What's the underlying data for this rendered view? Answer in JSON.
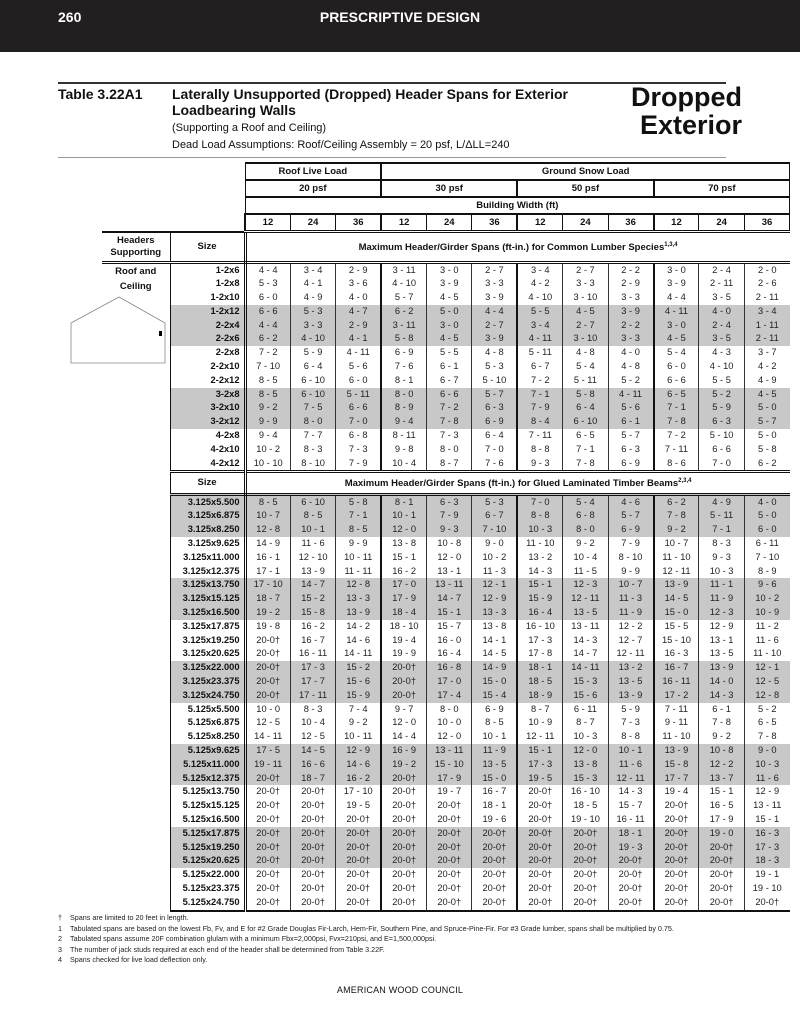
{
  "page": {
    "number": "260",
    "section": "PRESCRIPTIVE DESIGN",
    "footer": "AMERICAN WOOD COUNCIL"
  },
  "table": {
    "number": "Table 3.22A1",
    "title": "Laterally Unsupported (Dropped) Header Spans for Exterior Loadbearing Walls",
    "subtitle": "(Supporting a Roof and Ceiling)",
    "dead_load": "Dead Load Assumptions: Roof/Ceiling Assembly = 20 psf, L/ΔLL=240",
    "tab_label_1": "Dropped",
    "tab_label_2": "Exterior"
  },
  "header": {
    "roof_live_load": "Roof Live Load",
    "ground_snow_load": "Ground Snow Load",
    "loads": [
      "20 psf",
      "30 psf",
      "50 psf",
      "70 psf"
    ],
    "building_width": "Building Width (ft)",
    "widths": [
      "12",
      "24",
      "36",
      "12",
      "24",
      "36",
      "12",
      "24",
      "36",
      "12",
      "24",
      "36"
    ],
    "headers_supporting": "Headers Supporting",
    "size": "Size",
    "lumber_caption": "Maximum Header/Girder Spans (ft-in.) for Common Lumber Species",
    "lumber_notes": "1,3,4",
    "glulam_caption": "Maximum Header/Girder Spans (ft-in.) for Glued Laminated Timber Beams",
    "glulam_notes": "2,3,4",
    "supporting_label": "Roof and Ceiling"
  },
  "lumber_rows": [
    [
      "1-2x6",
      "4 - 4",
      "3 - 4",
      "2 - 9",
      "3 - 11",
      "3 - 0",
      "2 - 7",
      "3 - 4",
      "2 - 7",
      "2 - 2",
      "3 - 0",
      "2 - 4",
      "2 - 0"
    ],
    [
      "1-2x8",
      "5 - 3",
      "4 - 1",
      "3 - 6",
      "4 - 10",
      "3 - 9",
      "3 - 3",
      "4 - 2",
      "3 - 3",
      "2 - 9",
      "3 - 9",
      "2 - 11",
      "2 - 6"
    ],
    [
      "1-2x10",
      "6 - 0",
      "4 - 9",
      "4 - 0",
      "5 - 7",
      "4 - 5",
      "3 - 9",
      "4 - 10",
      "3 - 10",
      "3 - 3",
      "4 - 4",
      "3 - 5",
      "2 - 11"
    ],
    [
      "1-2x12",
      "6 - 6",
      "5 - 3",
      "4 - 7",
      "6 - 2",
      "5 - 0",
      "4 - 4",
      "5 - 5",
      "4 - 5",
      "3 - 9",
      "4 - 11",
      "4 - 0",
      "3 - 4"
    ],
    [
      "2-2x4",
      "4 - 4",
      "3 - 3",
      "2 - 9",
      "3 - 11",
      "3 - 0",
      "2 - 7",
      "3 - 4",
      "2 - 7",
      "2 - 2",
      "3 - 0",
      "2 - 4",
      "1 - 11"
    ],
    [
      "2-2x6",
      "6 - 2",
      "4 - 10",
      "4 - 1",
      "5 - 8",
      "4 - 5",
      "3 - 9",
      "4 - 11",
      "3 - 10",
      "3 - 3",
      "4 - 5",
      "3 - 5",
      "2 - 11"
    ],
    [
      "2-2x8",
      "7 - 2",
      "5 - 9",
      "4 - 11",
      "6 - 9",
      "5 - 5",
      "4 - 8",
      "5 - 11",
      "4 - 8",
      "4 - 0",
      "5 - 4",
      "4 - 3",
      "3 - 7"
    ],
    [
      "2-2x10",
      "7 - 10",
      "6 - 4",
      "5 - 6",
      "7 - 6",
      "6 - 1",
      "5 - 3",
      "6 - 7",
      "5 - 4",
      "4 - 8",
      "6 - 0",
      "4 - 10",
      "4 - 2"
    ],
    [
      "2-2x12",
      "8 - 5",
      "6 - 10",
      "6 - 0",
      "8 - 1",
      "6 - 7",
      "5 - 10",
      "7 - 2",
      "5 - 11",
      "5 - 2",
      "6 - 6",
      "5 - 5",
      "4 - 9"
    ],
    [
      "3-2x8",
      "8 - 5",
      "6 - 10",
      "5 - 11",
      "8 - 0",
      "6 - 6",
      "5 - 7",
      "7 - 1",
      "5 - 8",
      "4 - 11",
      "6 - 5",
      "5 - 2",
      "4 - 5"
    ],
    [
      "3-2x10",
      "9 - 2",
      "7 - 5",
      "6 - 6",
      "8 - 9",
      "7 - 2",
      "6 - 3",
      "7 - 9",
      "6 - 4",
      "5 - 6",
      "7 - 1",
      "5 - 9",
      "5 - 0"
    ],
    [
      "3-2x12",
      "9 - 9",
      "8 - 0",
      "7 - 0",
      "9 - 4",
      "7 - 8",
      "6 - 9",
      "8 - 4",
      "6 - 10",
      "6 - 1",
      "7 - 8",
      "6 - 3",
      "5 - 7"
    ],
    [
      "4-2x8",
      "9 - 4",
      "7 - 7",
      "6 - 8",
      "8 - 11",
      "7 - 3",
      "6 - 4",
      "7 - 11",
      "6 - 5",
      "5 - 7",
      "7 - 2",
      "5 - 10",
      "5 - 0"
    ],
    [
      "4-2x10",
      "10 - 2",
      "8 - 3",
      "7 - 3",
      "9 - 8",
      "8 - 0",
      "7 - 0",
      "8 - 8",
      "7 - 1",
      "6 - 3",
      "7 - 11",
      "6 - 6",
      "5 - 8"
    ],
    [
      "4-2x12",
      "10 - 10",
      "8 - 10",
      "7 - 9",
      "10 - 4",
      "8 - 7",
      "7 - 6",
      "9 - 3",
      "7 - 8",
      "6 - 9",
      "8 - 6",
      "7 - 0",
      "6 - 2"
    ]
  ],
  "glulam_rows": [
    [
      "3.125x5.500",
      "8 - 5",
      "6 - 10",
      "5 - 8",
      "8 - 1",
      "6 - 3",
      "5 - 3",
      "7 - 0",
      "5 - 4",
      "4 - 6",
      "6 - 2",
      "4 - 9",
      "4 - 0"
    ],
    [
      "3.125x6.875",
      "10 - 7",
      "8 - 5",
      "7 - 1",
      "10 - 1",
      "7 - 9",
      "6 - 7",
      "8 - 8",
      "6 - 8",
      "5 - 7",
      "7 - 8",
      "5 - 11",
      "5 - 0"
    ],
    [
      "3.125x8.250",
      "12 - 8",
      "10 - 1",
      "8 - 5",
      "12 - 0",
      "9 - 3",
      "7 - 10",
      "10 - 3",
      "8 - 0",
      "6 - 9",
      "9 - 2",
      "7 - 1",
      "6 - 0"
    ],
    [
      "3.125x9.625",
      "14 - 9",
      "11 - 6",
      "9 - 9",
      "13 - 8",
      "10 - 8",
      "9 - 0",
      "11 - 10",
      "9 - 2",
      "7 - 9",
      "10 - 7",
      "8 - 3",
      "6 - 11"
    ],
    [
      "3.125x11.000",
      "16 - 1",
      "12 - 10",
      "10 - 11",
      "15 - 1",
      "12 - 0",
      "10 - 2",
      "13 - 2",
      "10 - 4",
      "8 - 10",
      "11 - 10",
      "9 - 3",
      "7 - 10"
    ],
    [
      "3.125x12.375",
      "17 - 1",
      "13 - 9",
      "11 - 11",
      "16 - 2",
      "13 - 1",
      "11 - 3",
      "14 - 3",
      "11 - 5",
      "9 - 9",
      "12 - 11",
      "10 - 3",
      "8 - 9"
    ],
    [
      "3.125x13.750",
      "17 - 10",
      "14 - 7",
      "12 - 8",
      "17 - 0",
      "13 - 11",
      "12 - 1",
      "15 - 1",
      "12 - 3",
      "10 - 7",
      "13 - 9",
      "11 - 1",
      "9 - 6"
    ],
    [
      "3.125x15.125",
      "18 - 7",
      "15 - 2",
      "13 - 3",
      "17 - 9",
      "14 - 7",
      "12 - 9",
      "15 - 9",
      "12 - 11",
      "11 - 3",
      "14 - 5",
      "11 - 9",
      "10 - 2"
    ],
    [
      "3.125x16.500",
      "19 - 2",
      "15 - 8",
      "13 - 9",
      "18 - 4",
      "15 - 1",
      "13 - 3",
      "16 - 4",
      "13 - 5",
      "11 - 9",
      "15 - 0",
      "12 - 3",
      "10 - 9"
    ],
    [
      "3.125x17.875",
      "19 - 8",
      "16 - 2",
      "14 - 2",
      "18 - 10",
      "15 - 7",
      "13 - 8",
      "16 - 10",
      "13 - 11",
      "12 - 2",
      "15 - 5",
      "12 - 9",
      "11 - 2"
    ],
    [
      "3.125x19.250",
      "20-0†",
      "16 - 7",
      "14 - 6",
      "19 - 4",
      "16 - 0",
      "14 - 1",
      "17 - 3",
      "14 - 3",
      "12 - 7",
      "15 - 10",
      "13 - 1",
      "11 - 6"
    ],
    [
      "3.125x20.625",
      "20-0†",
      "16 - 11",
      "14 - 11",
      "19 - 9",
      "16 - 4",
      "14 - 5",
      "17 - 8",
      "14 - 7",
      "12 - 11",
      "16 - 3",
      "13 - 5",
      "11 - 10"
    ],
    [
      "3.125x22.000",
      "20-0†",
      "17 - 3",
      "15 - 2",
      "20-0†",
      "16 - 8",
      "14 - 9",
      "18 - 1",
      "14 - 11",
      "13 - 2",
      "16 - 7",
      "13 - 9",
      "12 - 1"
    ],
    [
      "3.125x23.375",
      "20-0†",
      "17 - 7",
      "15 - 6",
      "20-0†",
      "17 - 0",
      "15 - 0",
      "18 - 5",
      "15 - 3",
      "13 - 5",
      "16 - 11",
      "14 - 0",
      "12 - 5"
    ],
    [
      "3.125x24.750",
      "20-0†",
      "17 - 11",
      "15 - 9",
      "20-0†",
      "17 - 4",
      "15 - 4",
      "18 - 9",
      "15 - 6",
      "13 - 9",
      "17 - 2",
      "14 - 3",
      "12 - 8"
    ],
    [
      "5.125x5.500",
      "10 - 0",
      "8 - 3",
      "7 - 4",
      "9 - 7",
      "8 - 0",
      "6 - 9",
      "8 - 7",
      "6 - 11",
      "5 - 9",
      "7 - 11",
      "6 - 1",
      "5 - 2"
    ],
    [
      "5.125x6.875",
      "12 - 5",
      "10 - 4",
      "9 - 2",
      "12 - 0",
      "10 - 0",
      "8 - 5",
      "10 - 9",
      "8 - 7",
      "7 - 3",
      "9 - 11",
      "7 - 8",
      "6 - 5"
    ],
    [
      "5.125x8.250",
      "14 - 11",
      "12 - 5",
      "10 - 11",
      "14 - 4",
      "12 - 0",
      "10 - 1",
      "12 - 11",
      "10 - 3",
      "8 - 8",
      "11 - 10",
      "9 - 2",
      "7 - 8"
    ],
    [
      "5.125x9.625",
      "17 - 5",
      "14 - 5",
      "12 - 9",
      "16 - 9",
      "13 - 11",
      "11 - 9",
      "15 - 1",
      "12 - 0",
      "10 - 1",
      "13 - 9",
      "10 - 8",
      "9 - 0"
    ],
    [
      "5.125x11.000",
      "19 - 11",
      "16 - 6",
      "14 - 6",
      "19 - 2",
      "15 - 10",
      "13 - 5",
      "17 - 3",
      "13 - 8",
      "11 - 6",
      "15 - 8",
      "12 - 2",
      "10 - 3"
    ],
    [
      "5.125x12.375",
      "20-0†",
      "18 - 7",
      "16 - 2",
      "20-0†",
      "17 - 9",
      "15 - 0",
      "19 - 5",
      "15 - 3",
      "12 - 11",
      "17 - 7",
      "13 - 7",
      "11 - 6"
    ],
    [
      "5.125x13.750",
      "20-0†",
      "20-0†",
      "17 - 10",
      "20-0†",
      "19 - 7",
      "16 - 7",
      "20-0†",
      "16 - 10",
      "14 - 3",
      "19 - 4",
      "15 - 1",
      "12 - 9"
    ],
    [
      "5.125x15.125",
      "20-0†",
      "20-0†",
      "19 - 5",
      "20-0†",
      "20-0†",
      "18 - 1",
      "20-0†",
      "18 - 5",
      "15 - 7",
      "20-0†",
      "16 - 5",
      "13 - 11"
    ],
    [
      "5.125x16.500",
      "20-0†",
      "20-0†",
      "20-0†",
      "20-0†",
      "20-0†",
      "19 - 6",
      "20-0†",
      "19 - 10",
      "16 - 11",
      "20-0†",
      "17 - 9",
      "15 - 1"
    ],
    [
      "5.125x17.875",
      "20-0†",
      "20-0†",
      "20-0†",
      "20-0†",
      "20-0†",
      "20-0†",
      "20-0†",
      "20-0†",
      "18 - 1",
      "20-0†",
      "19 - 0",
      "16 - 3"
    ],
    [
      "5.125x19.250",
      "20-0†",
      "20-0†",
      "20-0†",
      "20-0†",
      "20-0†",
      "20-0†",
      "20-0†",
      "20-0†",
      "19 - 3",
      "20-0†",
      "20-0†",
      "17 - 3"
    ],
    [
      "5.125x20.625",
      "20-0†",
      "20-0†",
      "20-0†",
      "20-0†",
      "20-0†",
      "20-0†",
      "20-0†",
      "20-0†",
      "20-0†",
      "20-0†",
      "20-0†",
      "18 - 3"
    ],
    [
      "5.125x22.000",
      "20-0†",
      "20-0†",
      "20-0†",
      "20-0†",
      "20-0†",
      "20-0†",
      "20-0†",
      "20-0†",
      "20-0†",
      "20-0†",
      "20-0†",
      "19 - 1"
    ],
    [
      "5.125x23.375",
      "20-0†",
      "20-0†",
      "20-0†",
      "20-0†",
      "20-0†",
      "20-0†",
      "20-0†",
      "20-0†",
      "20-0†",
      "20-0†",
      "20-0†",
      "19 - 10"
    ],
    [
      "5.125x24.750",
      "20-0†",
      "20-0†",
      "20-0†",
      "20-0†",
      "20-0†",
      "20-0†",
      "20-0†",
      "20-0†",
      "20-0†",
      "20-0†",
      "20-0†",
      "20-0†"
    ]
  ],
  "shade_color": "#c8c8c8",
  "footnotes": [
    {
      "key": "†",
      "text": "Spans are limited to 20 feet in length."
    },
    {
      "key": "1",
      "text": "Tabulated spans are based on the lowest Fb, Fv, and E for #2 Grade Douglas Fir-Larch, Hem-Fir, Southern Pine, and Spruce-Pine-Fir. For #3 Grade lumber, spans shall be multiplied by 0.75."
    },
    {
      "key": "2",
      "text": "Tabulated spans assume 20F combination glulam with a minimum Fbx=2,000psi, Fvx=210psi, and E=1,500,000psi."
    },
    {
      "key": "3",
      "text": "The number of jack studs required at each end of the header shall be determined from Table 3.22F."
    },
    {
      "key": "4",
      "text": "Spans checked for live load deflection only."
    }
  ]
}
